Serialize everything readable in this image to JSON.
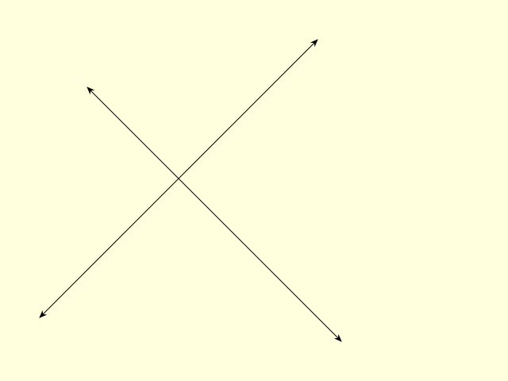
{
  "colors": {
    "background": "#ffffdd",
    "line": "#000000"
  },
  "diagram": {
    "lines": [
      {
        "name": "line-ascending",
        "arrow_start": true,
        "arrow_end": true
      },
      {
        "name": "line-descending",
        "arrow_start": true,
        "arrow_end": true
      }
    ]
  }
}
